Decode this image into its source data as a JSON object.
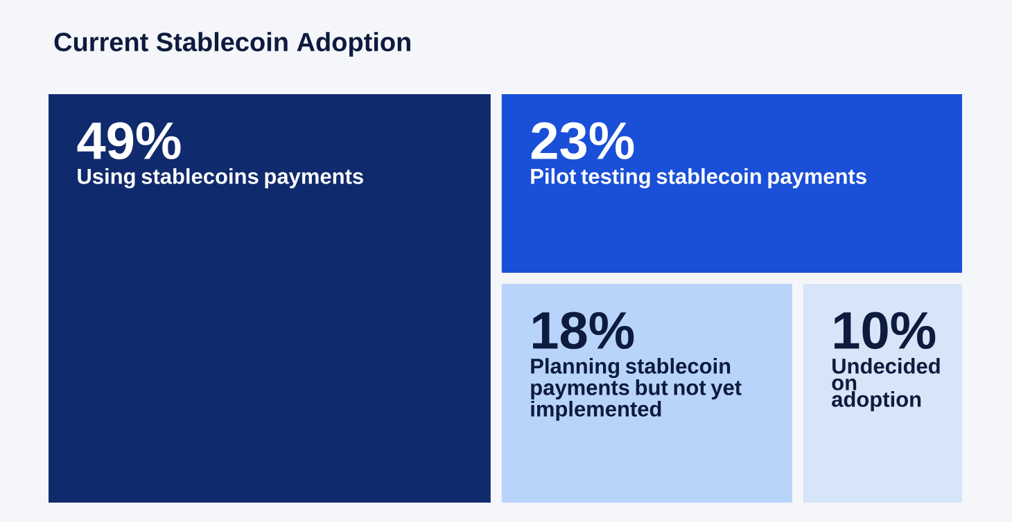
{
  "chart_data": {
    "type": "other",
    "title": "Current Stablecoin Adoption",
    "categories": [
      "Using stablecoins payments",
      "Pilot testing stablecoin payments",
      "Planning stablecoin payments but not yet implemented",
      "Undecided on adoption"
    ],
    "values": [
      49,
      23,
      18,
      10
    ],
    "value_labels": [
      "49%",
      "23%",
      "18%",
      "10%"
    ],
    "colors": [
      "#102a6e",
      "#1a4fd8",
      "#b9d4fb",
      "#d7e5f8"
    ]
  }
}
